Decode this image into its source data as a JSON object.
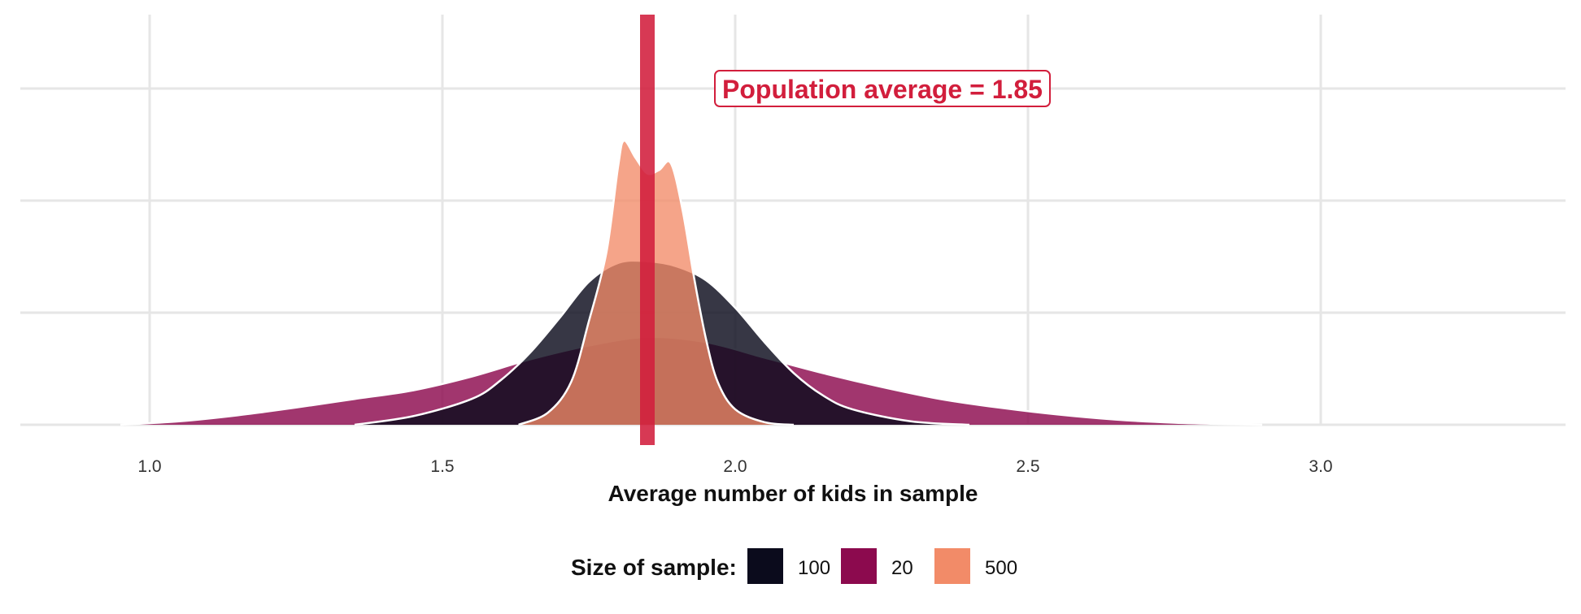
{
  "chart_data": {
    "type": "area",
    "xlabel": "Average number of kids in sample",
    "ylabel": "",
    "xlim": [
      0.78,
      3.44
    ],
    "x_ticks": [
      "1.0",
      "1.5",
      "2.0",
      "2.5",
      "3.0"
    ],
    "x_tick_values": [
      1.0,
      1.5,
      2.0,
      2.5,
      3.0
    ],
    "grid": true,
    "reference_line": {
      "x": 1.85,
      "color": "#d21e3c"
    },
    "annotation": {
      "text": "Population average = 1.85",
      "color": "#d21e3c"
    },
    "legend": {
      "title": "Size of sample:",
      "position": "bottom",
      "items": [
        {
          "label": "100",
          "color": "#0b0b1c"
        },
        {
          "label": "20",
          "color": "#8c0a4e"
        },
        {
          "label": "500",
          "color": "#f28b68"
        }
      ]
    },
    "series": [
      {
        "name": "20",
        "color": "#8c0a4e",
        "x": [
          0.95,
          1.05,
          1.15,
          1.25,
          1.35,
          1.45,
          1.55,
          1.65,
          1.75,
          1.85,
          1.95,
          2.05,
          2.15,
          2.25,
          2.35,
          2.45,
          2.55,
          2.65,
          2.75,
          2.85,
          2.9
        ],
        "density": [
          0.0,
          0.2,
          0.55,
          1.0,
          1.5,
          2.0,
          2.8,
          3.8,
          4.6,
          5.1,
          4.8,
          3.9,
          3.0,
          2.2,
          1.5,
          1.0,
          0.6,
          0.3,
          0.12,
          0.03,
          0.0
        ]
      },
      {
        "name": "100",
        "color": "#0b0b1c",
        "x": [
          1.35,
          1.45,
          1.55,
          1.6,
          1.65,
          1.7,
          1.75,
          1.8,
          1.85,
          1.9,
          1.95,
          2.0,
          2.05,
          2.1,
          2.15,
          2.2,
          2.3,
          2.4
        ],
        "density": [
          0.0,
          0.5,
          1.5,
          2.6,
          4.2,
          6.2,
          8.3,
          9.4,
          9.5,
          9.2,
          8.4,
          6.8,
          4.8,
          3.0,
          1.7,
          0.9,
          0.2,
          0.0
        ]
      },
      {
        "name": "500",
        "color": "#f28b68",
        "x": [
          1.63,
          1.68,
          1.72,
          1.75,
          1.78,
          1.8,
          1.81,
          1.83,
          1.85,
          1.87,
          1.89,
          1.91,
          1.93,
          1.95,
          1.97,
          2.0,
          2.05,
          2.1
        ],
        "density": [
          0.0,
          0.7,
          2.5,
          6.0,
          10.0,
          15.0,
          16.5,
          15.5,
          14.6,
          14.8,
          15.2,
          12.5,
          8.5,
          5.0,
          2.5,
          0.9,
          0.15,
          0.0
        ]
      }
    ],
    "ylim": [
      0,
      17.6
    ]
  }
}
